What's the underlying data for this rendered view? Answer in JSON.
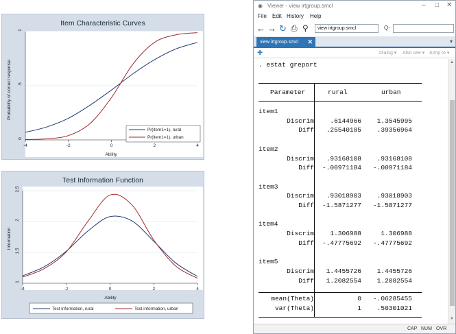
{
  "graph1": {
    "title": "Item Characteristic Curves",
    "ylabel": "Probability of correct response",
    "xlabel": "Ability",
    "legend": [
      "Pr(item1=1), rural",
      "Pr(item1=1), urban"
    ]
  },
  "graph2": {
    "title": "Test Information Function",
    "ylabel": "Information",
    "xlabel": "Ability",
    "legend": [
      "Test information, rural",
      "Test information, urban"
    ]
  },
  "chart_data": [
    {
      "type": "line",
      "title": "Item Characteristic Curves",
      "xlabel": "Ability",
      "ylabel": "Probability of correct response",
      "xlim": [
        -4,
        4
      ],
      "ylim": [
        0,
        1
      ],
      "xticks": [
        "-4",
        "-2",
        "0",
        "2",
        "4"
      ],
      "yticks": [
        "0",
        ".5",
        "1"
      ],
      "legend_position": "bottom-right inside",
      "series": [
        {
          "name": "Pr(item1=1), rural",
          "color": "#1f3a6e",
          "x": [
            -4,
            -3,
            -2,
            -1,
            0,
            1,
            2,
            3,
            4
          ],
          "y": [
            0.07,
            0.12,
            0.2,
            0.32,
            0.46,
            0.61,
            0.74,
            0.84,
            0.9
          ]
        },
        {
          "name": "Pr(item1=1), urban",
          "color": "#a0272d",
          "x": [
            -4,
            -3,
            -2,
            -1,
            0,
            1,
            2,
            3,
            4
          ],
          "y": [
            0.003,
            0.01,
            0.04,
            0.15,
            0.39,
            0.7,
            0.9,
            0.97,
            0.99
          ]
        }
      ]
    },
    {
      "type": "line",
      "title": "Test Information Function",
      "xlabel": "Ability",
      "ylabel": "Information",
      "xlim": [
        -4,
        4
      ],
      "ylim": [
        1,
        2.5
      ],
      "xticks": [
        "-4",
        "-2",
        "0",
        "2",
        "4"
      ],
      "yticks": [
        "1",
        "1.5",
        "2",
        "2.5"
      ],
      "legend_position": "bottom outside",
      "series": [
        {
          "name": "Test information, rural",
          "color": "#1f3a6e",
          "x": [
            -4,
            -3,
            -2,
            -1,
            0,
            1,
            2,
            3,
            4
          ],
          "y": [
            1.12,
            1.27,
            1.52,
            1.85,
            2.08,
            2.01,
            1.68,
            1.33,
            1.11
          ]
        },
        {
          "name": "Test information, urban",
          "color": "#a0272d",
          "x": [
            -4,
            -3,
            -2,
            -1,
            0,
            1,
            2,
            3,
            4
          ],
          "y": [
            1.1,
            1.24,
            1.51,
            2.01,
            2.43,
            2.27,
            1.7,
            1.28,
            1.08
          ]
        }
      ]
    }
  ],
  "viewer": {
    "window_title": "Viewer - view irtgroup.smcl",
    "menu": [
      "File",
      "Edit",
      "History",
      "Help"
    ],
    "address": "view irtgroup.smcl",
    "search_prefix": "Q-",
    "tab_label": "view irtgroup.smcl",
    "actions": [
      "Dialog",
      "Also see",
      "Jump to"
    ],
    "command": ". estat greport",
    "table": {
      "headers": [
        "Parameter",
        "rural",
        "urban"
      ],
      "items": [
        {
          "name": "item1",
          "rows": [
            [
              "Discrim",
              ".6144966",
              "1.3545995"
            ],
            [
              "Diff",
              ".25540185",
              ".39356964"
            ]
          ]
        },
        {
          "name": "item2",
          "rows": [
            [
              "Discrim",
              ".93168108",
              ".93168108"
            ],
            [
              "Diff",
              "-.00971184",
              "-.00971184"
            ]
          ]
        },
        {
          "name": "item3",
          "rows": [
            [
              "Discrim",
              ".93018903",
              ".93018903"
            ],
            [
              "Diff",
              "-1.5871277",
              "-1.5871277"
            ]
          ]
        },
        {
          "name": "item4",
          "rows": [
            [
              "Discrim",
              "1.306988",
              "1.306988"
            ],
            [
              "Diff",
              "-.47775692",
              "-.47775692"
            ]
          ]
        },
        {
          "name": "item5",
          "rows": [
            [
              "Discrim",
              "1.4455726",
              "1.4455726"
            ],
            [
              "Diff",
              "1.2082554",
              "1.2082554"
            ]
          ]
        }
      ],
      "footer": [
        [
          "mean(Theta)",
          "0",
          "-.06285455"
        ],
        [
          "var(Theta)",
          "1",
          ".50301021"
        ]
      ]
    },
    "status": [
      "CAP",
      "NUM",
      "OVR"
    ]
  }
}
